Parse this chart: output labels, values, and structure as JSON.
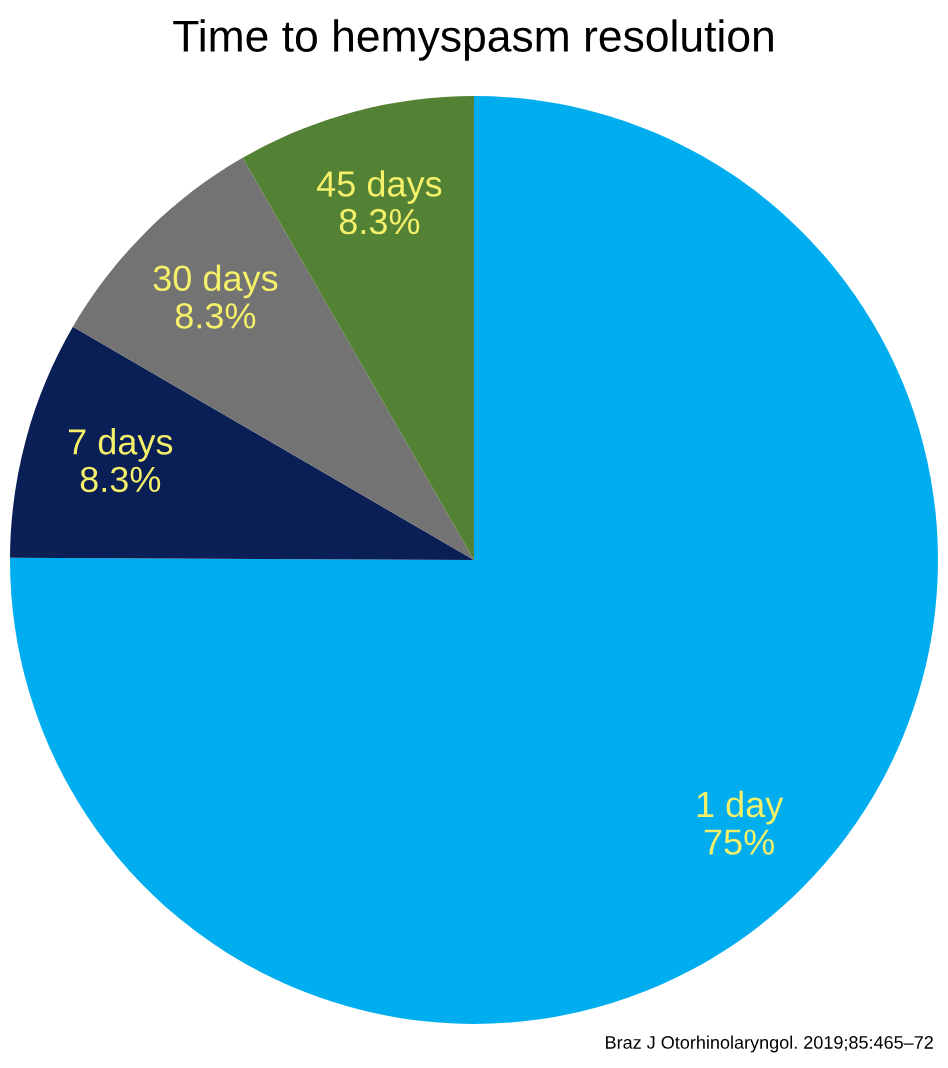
{
  "chart_data": {
    "type": "pie",
    "title": "Time to hemyspasm resolution",
    "categories": [
      "1 day",
      "7 days",
      "30 days",
      "45 days"
    ],
    "values": [
      75,
      8.3,
      8.3,
      8.3
    ],
    "value_labels": [
      "75%",
      "8.3%",
      "8.3%",
      "8.3%"
    ],
    "colors": [
      "#00aeef",
      "#0a1f55",
      "#737373",
      "#548235"
    ],
    "annotations": [
      "Braz J Otorhinolaryngol. 2019;85:465–72"
    ]
  }
}
